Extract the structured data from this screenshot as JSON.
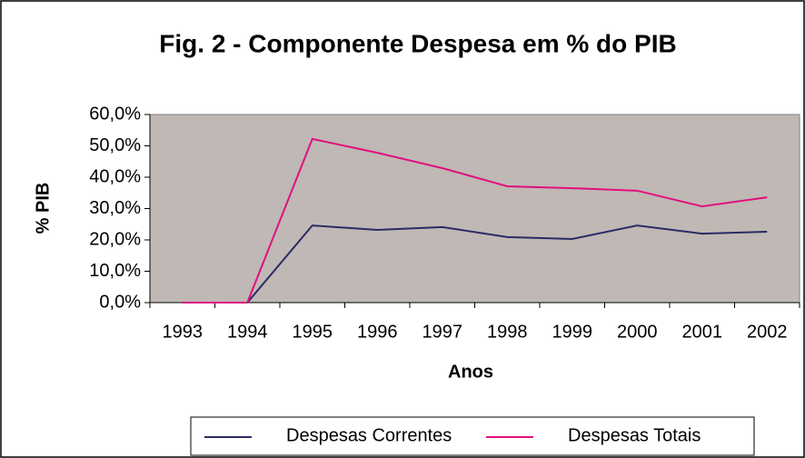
{
  "chart_data": {
    "type": "line",
    "title": "Fig. 2 - Componente Despesa em % do PIB",
    "x_label": "Anos",
    "y_label": "% PIB",
    "categories": [
      "1993",
      "1994",
      "1995",
      "1996",
      "1997",
      "1998",
      "1999",
      "2000",
      "2001",
      "2002"
    ],
    "series": [
      {
        "name": "Despesas Correntes",
        "color": "#2b2b66",
        "values": [
          0,
          0,
          24.6,
          23.2,
          24.1,
          20.9,
          20.3,
          24.6,
          22.0,
          22.6
        ]
      },
      {
        "name": "Despesas Totais",
        "color": "#e0107f",
        "values": [
          0,
          0,
          52.2,
          47.8,
          42.9,
          37.1,
          36.5,
          35.7,
          30.7,
          33.6
        ]
      }
    ],
    "ylim": [
      0,
      60
    ],
    "yticks": [
      {
        "value": 0,
        "label": "0,0%"
      },
      {
        "value": 10,
        "label": "10,0%"
      },
      {
        "value": 20,
        "label": "20,0%"
      },
      {
        "value": 30,
        "label": "30,0%"
      },
      {
        "value": 40,
        "label": "40,0%"
      },
      {
        "value": 50,
        "label": "50,0%"
      },
      {
        "value": 60,
        "label": "60,0%"
      }
    ],
    "plot_background": "#c0b8b4",
    "legend": "bottom"
  }
}
